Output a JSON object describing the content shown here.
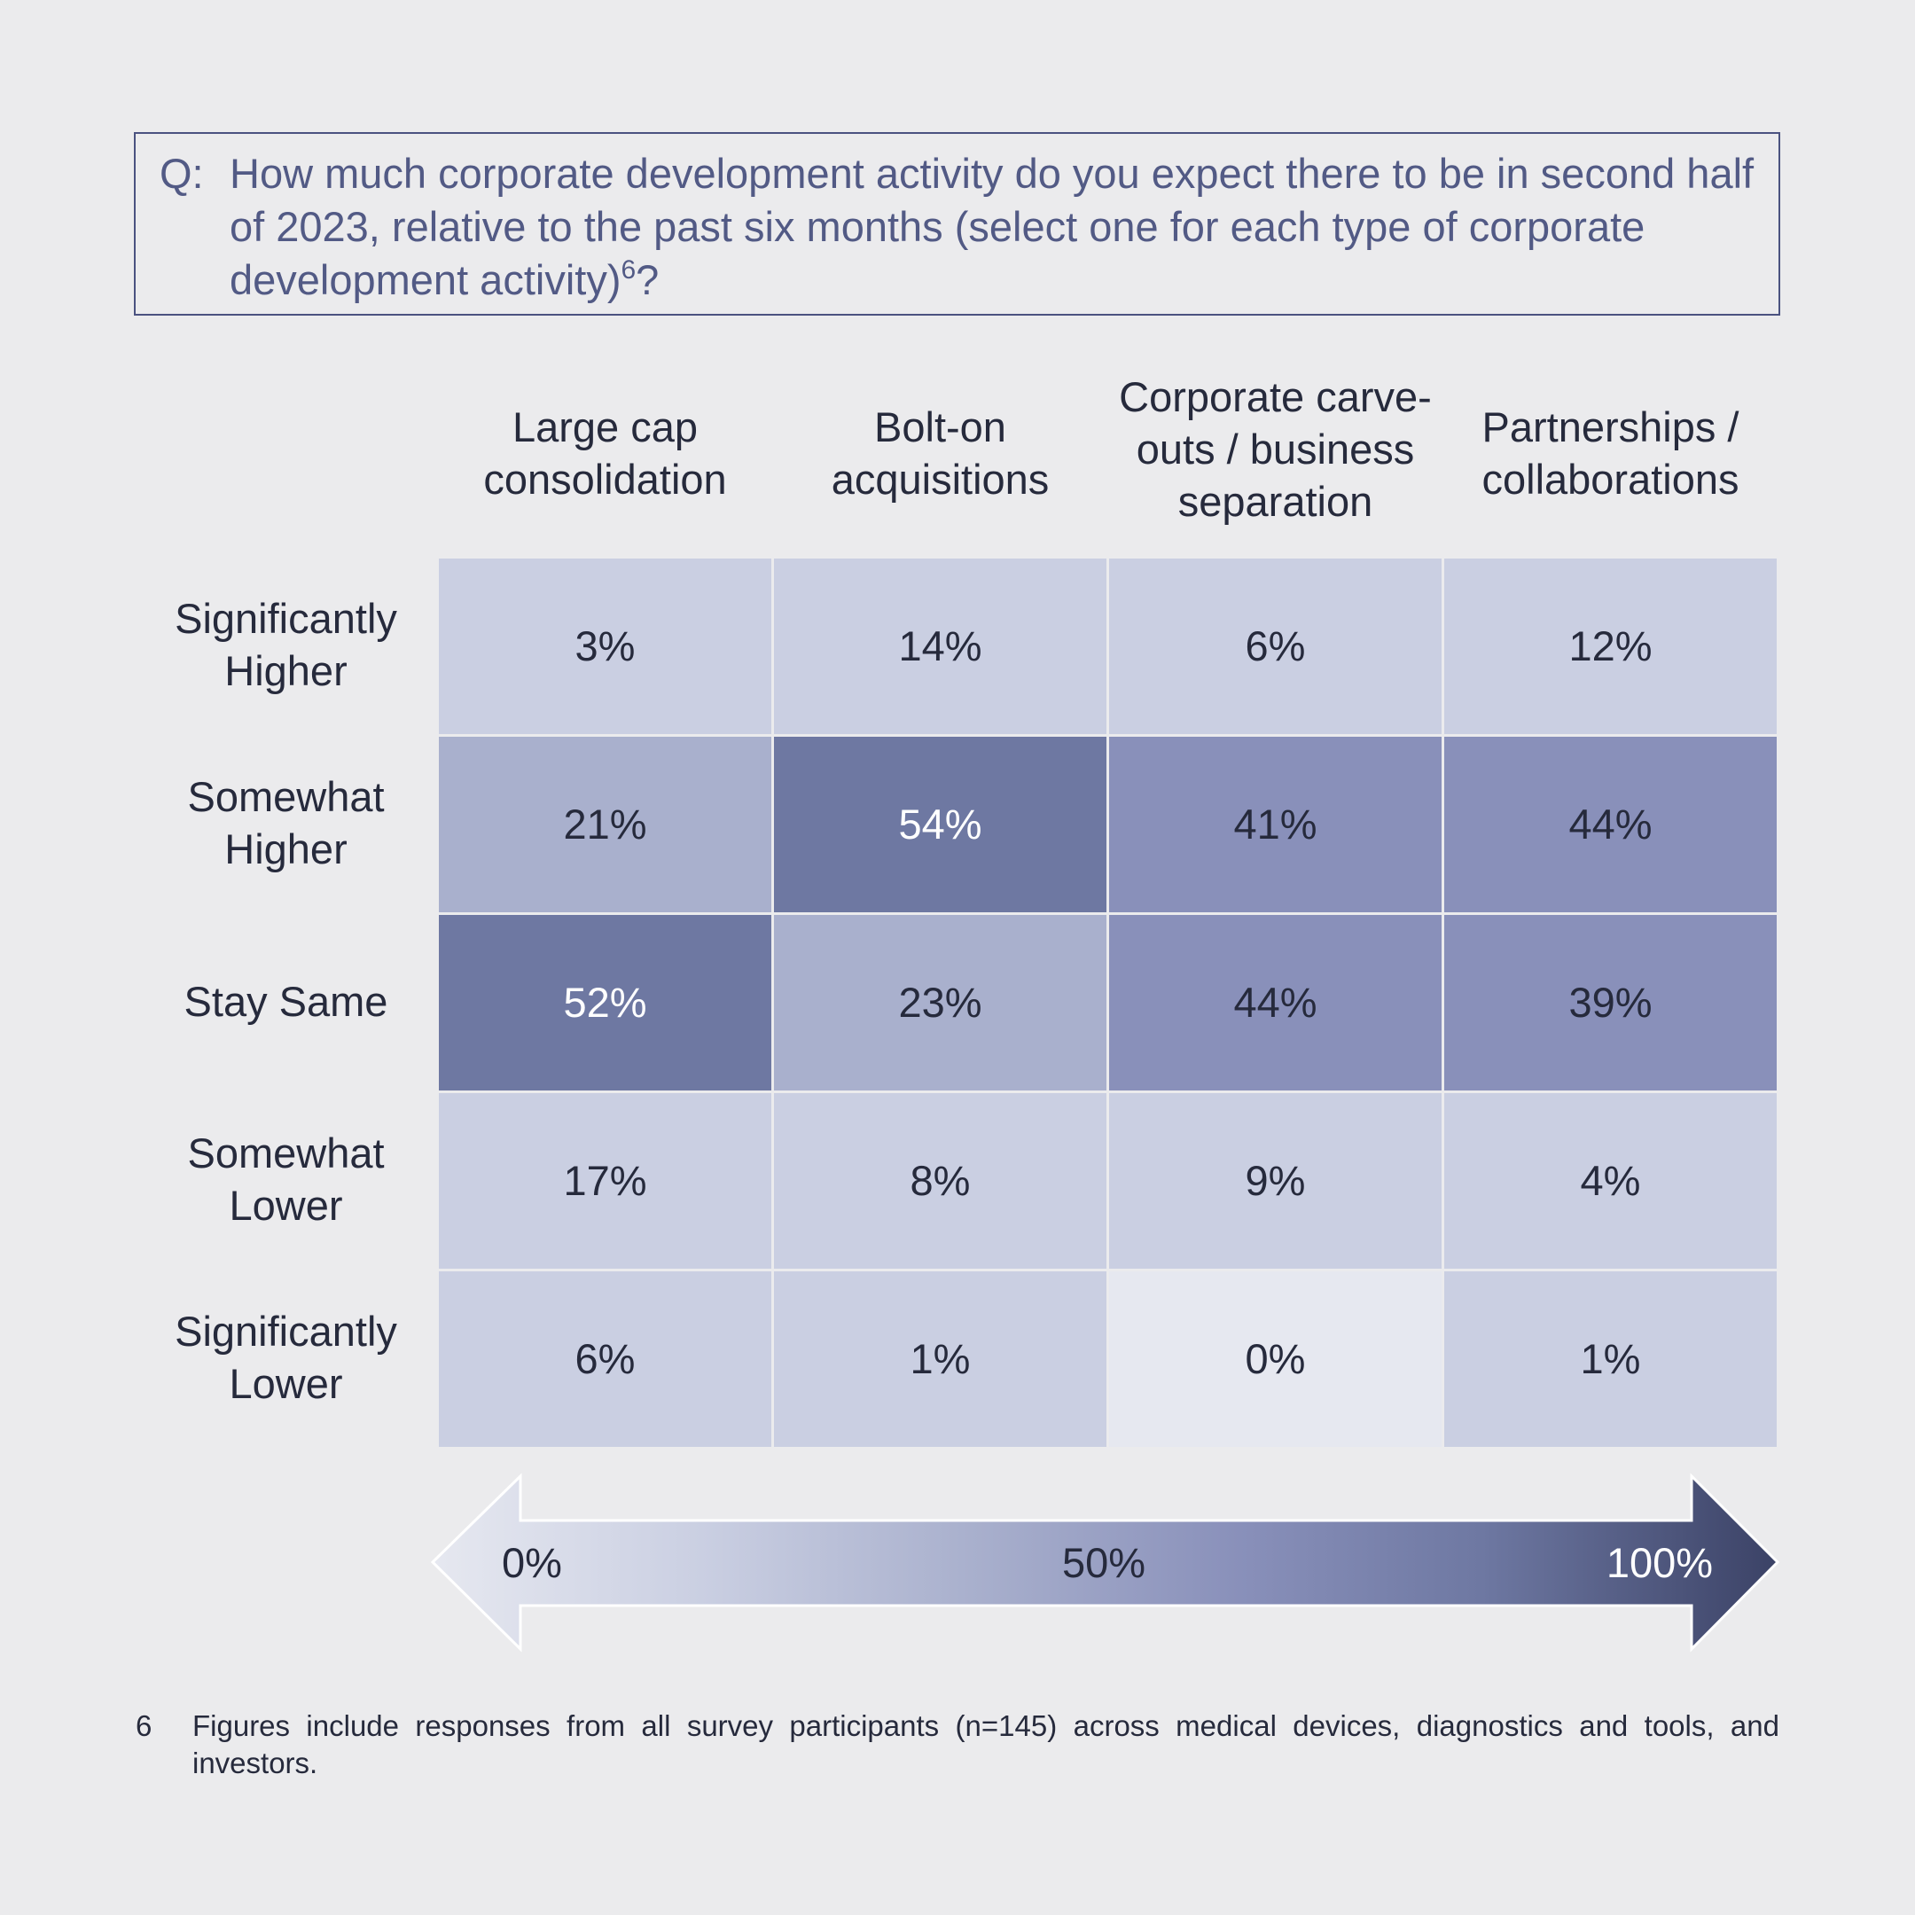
{
  "question": {
    "prefix": "Q:",
    "text": "How much corporate development activity do you expect there to be in second half of 2023, relative to the past six months (select one for each type of corporate development activity)",
    "footnote_ref": "6",
    "suffix": "?"
  },
  "chart_data": {
    "type": "heatmap",
    "columns": [
      "Large cap consolidation",
      "Bolt-on acquisitions",
      "Corporate carve-outs / business separation",
      "Partnerships / collaborations"
    ],
    "column_labels_display": [
      [
        "Large cap",
        "consolidation"
      ],
      [
        "Bolt-on",
        "acquisitions"
      ],
      [
        "Corporate carve-",
        "outs / business",
        "separation"
      ],
      [
        "Partnerships /",
        "collaborations"
      ]
    ],
    "rows": [
      "Significantly Higher",
      "Somewhat Higher",
      "Stay Same",
      "Somewhat Lower",
      "Significantly Lower"
    ],
    "row_labels_display": [
      [
        "Significantly",
        "Higher"
      ],
      [
        "Somewhat",
        "Higher"
      ],
      [
        "Stay Same"
      ],
      [
        "Somewhat",
        "Lower"
      ],
      [
        "Significantly",
        "Lower"
      ]
    ],
    "values": [
      [
        3,
        14,
        6,
        12
      ],
      [
        21,
        54,
        41,
        44
      ],
      [
        52,
        23,
        44,
        39
      ],
      [
        17,
        8,
        9,
        4
      ],
      [
        6,
        1,
        0,
        1
      ]
    ],
    "unit": "%",
    "scale": {
      "min": 0,
      "max": 100,
      "labels": [
        "0%",
        "50%",
        "100%"
      ],
      "colors": [
        "#e6e8f0",
        "#cacfe2",
        "#a9b0cd",
        "#8990ba",
        "#6e78a2",
        "#3b4266"
      ]
    }
  },
  "footnote": {
    "number": "6",
    "text": "Figures include responses from all survey participants (n=145) across medical devices, diagnostics and tools, and investors."
  }
}
